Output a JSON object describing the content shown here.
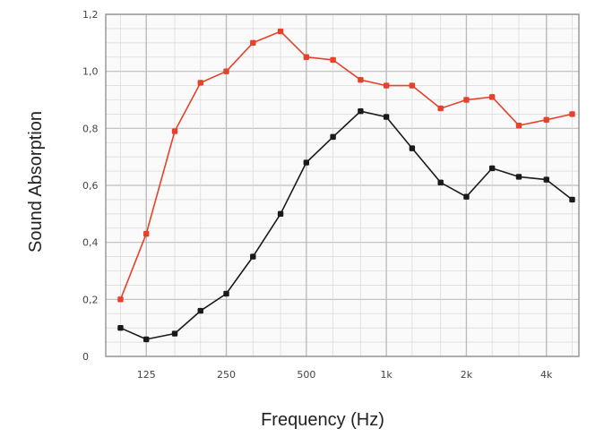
{
  "chart_data": {
    "type": "line",
    "title": "",
    "xlabel": "Frequency (Hz)",
    "ylabel": "Sound Absorption",
    "x_scale": "log",
    "x_tick_labels": [
      "125",
      "250",
      "500",
      "1k",
      "2k",
      "4k"
    ],
    "x_tick_values": [
      125,
      250,
      500,
      1000,
      2000,
      4000
    ],
    "y_tick_labels": [
      "0",
      "0,2",
      "0,4",
      "0,6",
      "0,8",
      "1,0",
      "1,2"
    ],
    "ylim": [
      0,
      1.2
    ],
    "xlim": [
      88,
      5300
    ],
    "grid": true,
    "x": [
      100,
      125,
      160,
      200,
      250,
      315,
      400,
      500,
      630,
      800,
      1000,
      1250,
      1600,
      2000,
      2500,
      3150,
      4000,
      5000
    ],
    "series": [
      {
        "color": "#e8412b",
        "values": [
          0.2,
          0.43,
          0.79,
          0.96,
          1.0,
          1.1,
          1.14,
          1.05,
          1.04,
          0.97,
          0.95,
          0.95,
          0.87,
          0.9,
          0.91,
          0.81,
          0.83,
          0.85
        ]
      },
      {
        "color": "#1a1a1a",
        "values": [
          0.1,
          0.06,
          0.08,
          0.16,
          0.22,
          0.35,
          0.5,
          0.68,
          0.77,
          0.86,
          0.84,
          0.73,
          0.61,
          0.56,
          0.66,
          0.63,
          0.62,
          0.55
        ]
      }
    ]
  }
}
